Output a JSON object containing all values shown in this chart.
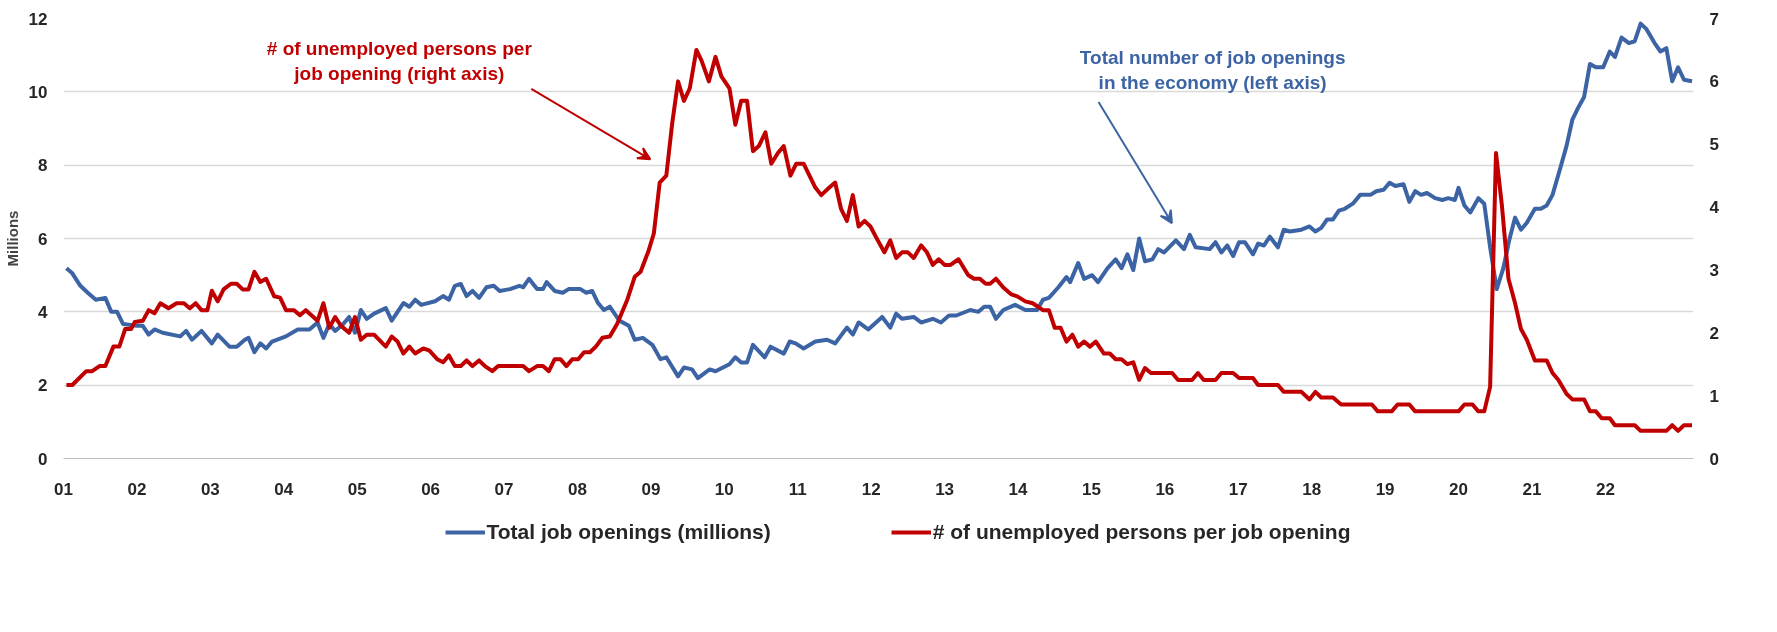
{
  "chart_data": {
    "type": "line",
    "ylabel": "Millions",
    "grid": "y",
    "legend": "bottom",
    "xlim": [
      2001,
      2023.2
    ],
    "xticks": [
      {
        "value": 2001,
        "label": "01"
      },
      {
        "value": 2002,
        "label": "02"
      },
      {
        "value": 2003,
        "label": "03"
      },
      {
        "value": 2004,
        "label": "04"
      },
      {
        "value": 2005,
        "label": "05"
      },
      {
        "value": 2006,
        "label": "06"
      },
      {
        "value": 2007,
        "label": "07"
      },
      {
        "value": 2008,
        "label": "08"
      },
      {
        "value": 2009,
        "label": "09"
      },
      {
        "value": 2010,
        "label": "10"
      },
      {
        "value": 2011,
        "label": "11"
      },
      {
        "value": 2012,
        "label": "12"
      },
      {
        "value": 2013,
        "label": "13"
      },
      {
        "value": 2014,
        "label": "14"
      },
      {
        "value": 2015,
        "label": "15"
      },
      {
        "value": 2016,
        "label": "16"
      },
      {
        "value": 2017,
        "label": "17"
      },
      {
        "value": 2018,
        "label": "18"
      },
      {
        "value": 2019,
        "label": "19"
      },
      {
        "value": 2020,
        "label": "20"
      },
      {
        "value": 2021,
        "label": "21"
      },
      {
        "value": 2022,
        "label": "22"
      }
    ],
    "ylim": [
      0,
      12
    ],
    "yticks": [
      0,
      2,
      4,
      6,
      8,
      10,
      12
    ],
    "y2lim": [
      0,
      7
    ],
    "y2ticks": [
      0,
      1,
      2,
      3,
      4,
      5,
      6,
      7
    ],
    "annotations": [
      "Total number of job openings\nin the economy (left axis)",
      "# of unemployed persons per\njob opening (right axis)"
    ],
    "series": [
      {
        "name": "Total job openings (millions)",
        "color": "#3c64a4",
        "x": [
          2001.04,
          2001.12,
          2001.23,
          2001.33,
          2001.44,
          2001.57,
          2001.65,
          2001.73,
          2001.81,
          2002.0,
          2002.08,
          2002.16,
          2002.24,
          2002.35,
          2002.59,
          2002.67,
          2002.75,
          2002.88,
          2003.02,
          2003.1,
          2003.26,
          2003.36,
          2003.47,
          2003.52,
          2003.6,
          2003.68,
          2003.76,
          2003.84,
          2004.03,
          2004.19,
          2004.35,
          2004.46,
          2004.54,
          2004.62,
          2004.7,
          2004.81,
          2004.89,
          2004.97,
          2005.05,
          2005.13,
          2005.23,
          2005.39,
          2005.47,
          2005.63,
          2005.71,
          2005.79,
          2005.87,
          2006.06,
          2006.17,
          2006.25,
          2006.33,
          2006.41,
          2006.49,
          2006.57,
          2006.66,
          2006.76,
          2006.86,
          2006.94,
          2007.08,
          2007.21,
          2007.26,
          2007.34,
          2007.45,
          2007.53,
          2007.58,
          2007.69,
          2007.8,
          2007.88,
          2008.04,
          2008.12,
          2008.2,
          2008.28,
          2008.36,
          2008.44,
          2008.57,
          2008.7,
          2008.78,
          2008.89,
          2009.02,
          2009.13,
          2009.21,
          2009.37,
          2009.45,
          2009.56,
          2009.64,
          2009.8,
          2009.88,
          2010.07,
          2010.15,
          2010.23,
          2010.31,
          2010.39,
          2010.55,
          2010.63,
          2010.81,
          2010.89,
          2010.97,
          2011.08,
          2011.24,
          2011.4,
          2011.51,
          2011.67,
          2011.75,
          2011.83,
          2011.96,
          2012.15,
          2012.26,
          2012.34,
          2012.42,
          2012.58,
          2012.68,
          2012.84,
          2012.95,
          2013.06,
          2013.16,
          2013.35,
          2013.46,
          2013.54,
          2013.62,
          2013.7,
          2013.8,
          2013.96,
          2014.1,
          2014.26,
          2014.34,
          2014.42,
          2014.55,
          2014.66,
          2014.71,
          2014.82,
          2014.9,
          2015.01,
          2015.09,
          2015.22,
          2015.33,
          2015.41,
          2015.49,
          2015.57,
          2015.65,
          2015.73,
          2015.83,
          2015.91,
          2015.99,
          2016.15,
          2016.26,
          2016.34,
          2016.42,
          2016.61,
          2016.69,
          2016.77,
          2016.85,
          2016.93,
          2017.01,
          2017.09,
          2017.2,
          2017.27,
          2017.35,
          2017.43,
          2017.54,
          2017.62,
          2017.7,
          2017.86,
          2017.97,
          2018.05,
          2018.13,
          2018.21,
          2018.29,
          2018.37,
          2018.45,
          2018.56,
          2018.66,
          2018.8,
          2018.88,
          2018.98,
          2019.06,
          2019.14,
          2019.25,
          2019.33,
          2019.41,
          2019.49,
          2019.57,
          2019.68,
          2019.78,
          2019.86,
          2019.95,
          2020.0,
          2020.08,
          2020.16,
          2020.27,
          2020.35,
          2020.43,
          2020.52,
          2020.61,
          2020.69,
          2020.77,
          2020.85,
          2020.93,
          2021.04,
          2021.12,
          2021.2,
          2021.28,
          2021.39,
          2021.47,
          2021.55,
          2021.63,
          2021.71,
          2021.79,
          2021.87,
          2021.97,
          2022.06,
          2022.13,
          2022.22,
          2022.32,
          2022.4,
          2022.48,
          2022.56,
          2022.67,
          2022.75,
          2022.83,
          2022.91,
          2022.99,
          2023.07,
          2023.18
        ],
        "values": [
          5.19,
          5.05,
          4.71,
          4.52,
          4.33,
          4.38,
          4.0,
          4.0,
          3.67,
          3.62,
          3.62,
          3.38,
          3.52,
          3.43,
          3.33,
          3.48,
          3.24,
          3.48,
          3.14,
          3.38,
          3.05,
          3.05,
          3.24,
          3.29,
          2.9,
          3.14,
          3.0,
          3.19,
          3.33,
          3.52,
          3.52,
          3.71,
          3.29,
          3.67,
          3.48,
          3.67,
          3.86,
          3.43,
          4.05,
          3.81,
          3.95,
          4.1,
          3.76,
          4.24,
          4.14,
          4.33,
          4.19,
          4.29,
          4.43,
          4.33,
          4.71,
          4.76,
          4.43,
          4.57,
          4.38,
          4.67,
          4.71,
          4.57,
          4.62,
          4.71,
          4.67,
          4.9,
          4.62,
          4.62,
          4.81,
          4.57,
          4.52,
          4.62,
          4.62,
          4.52,
          4.57,
          4.24,
          4.05,
          4.14,
          3.76,
          3.62,
          3.24,
          3.29,
          3.1,
          2.71,
          2.76,
          2.24,
          2.48,
          2.43,
          2.19,
          2.43,
          2.38,
          2.57,
          2.76,
          2.62,
          2.62,
          3.1,
          2.76,
          3.05,
          2.86,
          3.19,
          3.14,
          3.0,
          3.19,
          3.24,
          3.14,
          3.57,
          3.38,
          3.71,
          3.52,
          3.86,
          3.57,
          3.95,
          3.81,
          3.86,
          3.71,
          3.81,
          3.71,
          3.9,
          3.9,
          4.05,
          4.0,
          4.14,
          4.14,
          3.81,
          4.05,
          4.19,
          4.05,
          4.05,
          4.33,
          4.38,
          4.67,
          4.95,
          4.81,
          5.33,
          4.9,
          5.0,
          4.81,
          5.19,
          5.43,
          5.19,
          5.57,
          5.14,
          6.0,
          5.38,
          5.43,
          5.71,
          5.62,
          5.95,
          5.71,
          6.1,
          5.76,
          5.71,
          5.9,
          5.62,
          5.81,
          5.52,
          5.9,
          5.9,
          5.57,
          5.86,
          5.81,
          6.05,
          5.76,
          6.24,
          6.19,
          6.24,
          6.33,
          6.19,
          6.29,
          6.52,
          6.52,
          6.76,
          6.81,
          6.95,
          7.19,
          7.19,
          7.29,
          7.33,
          7.52,
          7.43,
          7.48,
          7.0,
          7.29,
          7.19,
          7.24,
          7.1,
          7.05,
          7.1,
          7.05,
          7.38,
          6.9,
          6.71,
          7.1,
          6.95,
          5.76,
          4.62,
          5.19,
          5.95,
          6.57,
          6.24,
          6.43,
          6.81,
          6.81,
          6.9,
          7.19,
          7.95,
          8.52,
          9.24,
          9.57,
          9.86,
          10.76,
          10.67,
          10.67,
          11.1,
          10.95,
          11.48,
          11.33,
          11.38,
          11.86,
          11.71,
          11.33,
          11.1,
          11.19,
          10.29,
          10.67,
          10.33,
          10.29
        ]
      },
      {
        "name": "# of unemployed persons per job opening",
        "color": "#c00000",
        "axis": "y2",
        "x": [
          2001.04,
          2001.12,
          2001.31,
          2001.39,
          2001.49,
          2001.57,
          2001.68,
          2001.76,
          2001.84,
          2001.92,
          2001.97,
          2002.08,
          2002.16,
          2002.24,
          2002.32,
          2002.43,
          2002.54,
          2002.64,
          2002.72,
          2002.8,
          2002.88,
          2002.96,
          2003.02,
          2003.1,
          2003.18,
          2003.28,
          2003.36,
          2003.44,
          2003.52,
          2003.6,
          2003.68,
          2003.76,
          2003.87,
          2003.95,
          2004.03,
          2004.14,
          2004.22,
          2004.3,
          2004.46,
          2004.54,
          2004.62,
          2004.7,
          2004.78,
          2004.89,
          2004.97,
          2005.05,
          2005.13,
          2005.23,
          2005.39,
          2005.47,
          2005.55,
          2005.63,
          2005.71,
          2005.79,
          2005.9,
          2005.98,
          2006.09,
          2006.17,
          2006.25,
          2006.33,
          2006.41,
          2006.49,
          2006.57,
          2006.66,
          2006.74,
          2006.84,
          2006.92,
          2007.16,
          2007.26,
          2007.34,
          2007.45,
          2007.53,
          2007.61,
          2007.69,
          2007.77,
          2007.85,
          2007.93,
          2008.01,
          2008.09,
          2008.17,
          2008.25,
          2008.34,
          2008.44,
          2008.54,
          2008.68,
          2008.78,
          2008.86,
          2008.97,
          2009.04,
          2009.12,
          2009.21,
          2009.29,
          2009.37,
          2009.45,
          2009.53,
          2009.62,
          2009.69,
          2009.79,
          2009.88,
          2009.96,
          2010.07,
          2010.15,
          2010.23,
          2010.31,
          2010.39,
          2010.47,
          2010.56,
          2010.64,
          2010.73,
          2010.81,
          2010.9,
          2010.98,
          2011.08,
          2011.24,
          2011.32,
          2011.43,
          2011.51,
          2011.59,
          2011.67,
          2011.75,
          2011.83,
          2011.91,
          2011.99,
          2012.09,
          2012.18,
          2012.26,
          2012.34,
          2012.42,
          2012.5,
          2012.58,
          2012.68,
          2012.76,
          2012.84,
          2012.92,
          2013.0,
          2013.08,
          2013.19,
          2013.32,
          2013.4,
          2013.48,
          2013.56,
          2013.62,
          2013.7,
          2013.8,
          2013.91,
          2013.99,
          2014.1,
          2014.2,
          2014.34,
          2014.42,
          2014.5,
          2014.58,
          2014.66,
          2014.74,
          2014.82,
          2014.9,
          2014.98,
          2015.06,
          2015.17,
          2015.25,
          2015.33,
          2015.41,
          2015.49,
          2015.57,
          2015.65,
          2015.73,
          2015.81,
          2016.1,
          2016.18,
          2016.37,
          2016.45,
          2016.53,
          2016.69,
          2016.77,
          2016.93,
          2017.01,
          2017.2,
          2017.27,
          2017.54,
          2017.62,
          2017.86,
          2017.97,
          2018.05,
          2018.13,
          2018.29,
          2018.4,
          2018.82,
          2018.9,
          2019.09,
          2019.17,
          2019.33,
          2019.41,
          2020.0,
          2020.08,
          2020.19,
          2020.27,
          2020.35,
          2020.43,
          2020.51,
          2020.59,
          2020.68,
          2020.77,
          2020.85,
          2020.93,
          2021.04,
          2021.2,
          2021.28,
          2021.36,
          2021.47,
          2021.55,
          2021.71,
          2021.79,
          2021.87,
          2021.95,
          2022.06,
          2022.13,
          2022.4,
          2022.48,
          2022.83,
          2022.91,
          2022.99,
          2023.07,
          2023.18
        ],
        "values": [
          1.17,
          1.17,
          1.39,
          1.39,
          1.47,
          1.47,
          1.78,
          1.78,
          2.06,
          2.06,
          2.17,
          2.19,
          2.36,
          2.31,
          2.47,
          2.39,
          2.47,
          2.47,
          2.39,
          2.47,
          2.36,
          2.36,
          2.67,
          2.5,
          2.69,
          2.78,
          2.78,
          2.69,
          2.69,
          2.97,
          2.81,
          2.86,
          2.58,
          2.56,
          2.36,
          2.36,
          2.28,
          2.36,
          2.19,
          2.47,
          2.08,
          2.25,
          2.11,
          2.0,
          2.25,
          1.89,
          1.97,
          1.97,
          1.78,
          1.94,
          1.86,
          1.67,
          1.78,
          1.67,
          1.75,
          1.72,
          1.58,
          1.53,
          1.64,
          1.47,
          1.47,
          1.56,
          1.47,
          1.56,
          1.47,
          1.39,
          1.47,
          1.47,
          1.47,
          1.39,
          1.47,
          1.47,
          1.39,
          1.58,
          1.58,
          1.47,
          1.58,
          1.58,
          1.69,
          1.69,
          1.78,
          1.92,
          1.94,
          2.14,
          2.53,
          2.89,
          2.97,
          3.31,
          3.58,
          4.39,
          4.5,
          5.33,
          6.0,
          5.69,
          5.89,
          6.5,
          6.33,
          6.0,
          6.39,
          6.08,
          5.89,
          5.31,
          5.69,
          5.69,
          4.89,
          4.97,
          5.19,
          4.69,
          4.86,
          4.97,
          4.5,
          4.69,
          4.69,
          4.31,
          4.19,
          4.31,
          4.39,
          3.97,
          3.78,
          4.19,
          3.69,
          3.78,
          3.69,
          3.47,
          3.28,
          3.47,
          3.19,
          3.28,
          3.28,
          3.19,
          3.39,
          3.28,
          3.08,
          3.17,
          3.08,
          3.08,
          3.17,
          2.92,
          2.86,
          2.86,
          2.78,
          2.78,
          2.86,
          2.72,
          2.61,
          2.58,
          2.5,
          2.47,
          2.36,
          2.36,
          2.08,
          2.08,
          1.86,
          1.97,
          1.78,
          1.86,
          1.78,
          1.86,
          1.67,
          1.67,
          1.58,
          1.58,
          1.5,
          1.53,
          1.25,
          1.44,
          1.36,
          1.36,
          1.25,
          1.25,
          1.36,
          1.25,
          1.25,
          1.36,
          1.36,
          1.28,
          1.28,
          1.17,
          1.17,
          1.06,
          1.06,
          0.94,
          1.06,
          0.97,
          0.97,
          0.86,
          0.86,
          0.75,
          0.75,
          0.86,
          0.86,
          0.75,
          0.75,
          0.86,
          0.86,
          0.75,
          0.75,
          1.14,
          4.86,
          4.03,
          2.86,
          2.47,
          2.06,
          1.89,
          1.56,
          1.56,
          1.36,
          1.25,
          1.03,
          0.94,
          0.94,
          0.75,
          0.75,
          0.64,
          0.64,
          0.53,
          0.53,
          0.44,
          0.44,
          0.53,
          0.44,
          0.53,
          0.53
        ]
      }
    ]
  }
}
